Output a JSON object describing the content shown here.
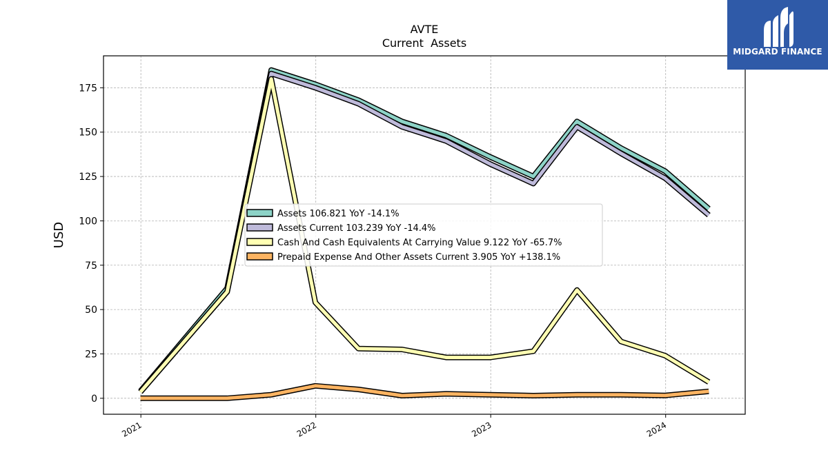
{
  "brand": {
    "name": "MIDGARD FINANCE",
    "logo_icon": "midgard-m-logo-icon",
    "background_color": "#2f5aa8"
  },
  "chart_data": {
    "type": "line",
    "title": "AVTE",
    "subtitle": "Current  Assets",
    "xlabel": "",
    "ylabel": "USD",
    "xlim": [
      "2020-10-15",
      "2024-06-15"
    ],
    "ylim": [
      -9,
      193
    ],
    "x_ticks": [
      {
        "label": "2021",
        "date": "2021-01-01"
      },
      {
        "label": "2022",
        "date": "2022-01-01"
      },
      {
        "label": "2023",
        "date": "2023-01-01"
      },
      {
        "label": "2024",
        "date": "2024-01-01"
      }
    ],
    "y_ticks": [
      0,
      25,
      50,
      75,
      100,
      125,
      150,
      175
    ],
    "grid": true,
    "legend_position": "center",
    "x": [
      "2020-12-31",
      "2021-06-30",
      "2021-09-30",
      "2021-12-31",
      "2022-03-31",
      "2022-06-30",
      "2022-09-30",
      "2022-12-31",
      "2023-03-31",
      "2023-06-30",
      "2023-09-30",
      "2023-12-31",
      "2024-03-31"
    ],
    "series": [
      {
        "name": "Assets  106.821 YoY -14.1%",
        "color": "#8dd3c7",
        "values": [
          4,
          62,
          185,
          177,
          168,
          156,
          148,
          136,
          125,
          156,
          141,
          128,
          106.821
        ]
      },
      {
        "name": "Assets Current  103.239 YoY -14.4%",
        "color": "#bebada",
        "values": [
          3.5,
          60,
          183,
          175,
          166,
          153,
          145,
          132,
          121,
          153,
          138,
          124,
          103.239
        ]
      },
      {
        "name": "Cash And Cash Equivalents At Carrying Value  9.122 YoY -65.7%",
        "color": "#ffffb3",
        "values": [
          3.5,
          60,
          180,
          54,
          28,
          27.5,
          23,
          23,
          26.5,
          61,
          32,
          24,
          9.122
        ]
      },
      {
        "name": "Prepaid Expense And Other Assets Current  3.905 YoY +138.1%",
        "color": "#fdb462",
        "values": [
          0,
          0,
          2,
          7,
          5,
          1.5,
          2.5,
          2,
          1.5,
          2,
          2,
          1.6,
          3.905
        ]
      }
    ]
  }
}
